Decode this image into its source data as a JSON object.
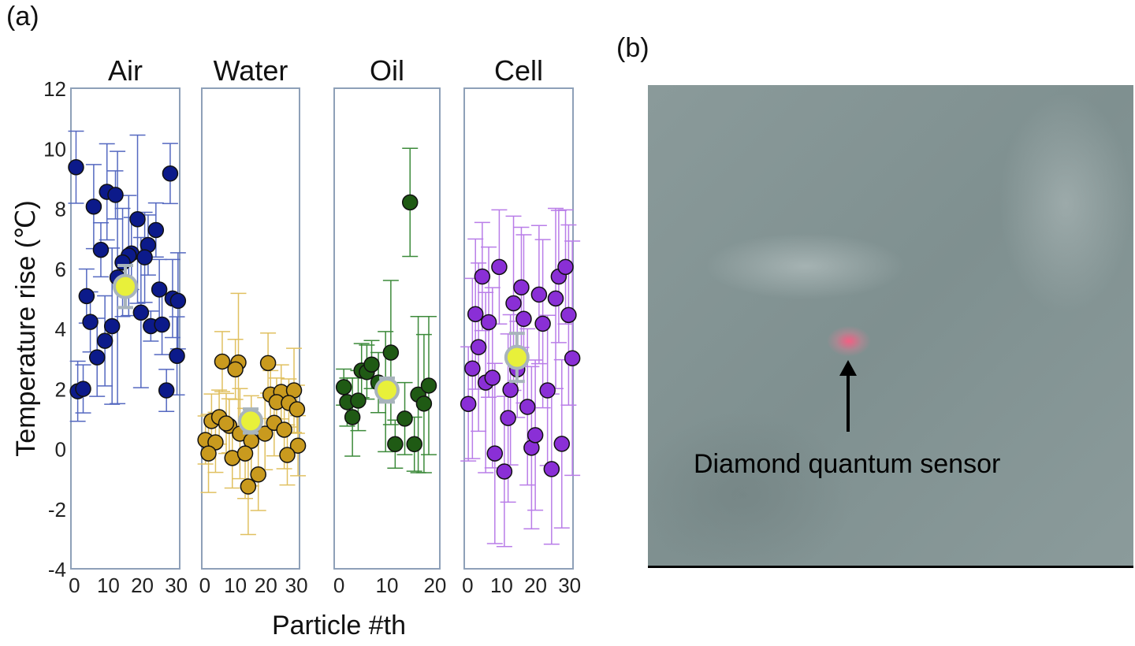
{
  "panel_a_label": "(a)",
  "panel_b_label": "(b)",
  "panel_b": {
    "annotation": "Diamond quantum sensor",
    "arrow_icon": "arrow-up-icon",
    "spot_color": "#ff6f95"
  },
  "chart_data": {
    "type": "scatter",
    "ylabel": "Temperature rise (℃)",
    "xlabel": "Particle #th",
    "ylim": [
      -4,
      12
    ],
    "yticks": [
      -4,
      -2,
      0,
      2,
      4,
      6,
      8,
      10,
      12
    ],
    "grid": false,
    "mean_marker_color": "#e8f03a",
    "panels": [
      {
        "title": "Air",
        "color": "#0c1a8a",
        "bar_color": "#5468c0",
        "xlim": [
          -1,
          31
        ],
        "xticks": [
          0,
          10,
          20,
          30
        ],
        "mean": {
          "x": 15,
          "y": 5.4,
          "err": 0.7
        },
        "points": [
          [
            0.5,
            9.37,
            1.2
          ],
          [
            28.2,
            9.16,
            1.0
          ],
          [
            9.6,
            8.55,
            1.6
          ],
          [
            12.1,
            8.45,
            0.8
          ],
          [
            5.7,
            8.06,
            1.4
          ],
          [
            18.6,
            7.64,
            2.8
          ],
          [
            24,
            7.28,
            0.9
          ],
          [
            7.8,
            6.62,
            0.9
          ],
          [
            21.7,
            6.78,
            1.0
          ],
          [
            16.8,
            6.5,
            1.2
          ],
          [
            16,
            6.43,
            2.0
          ],
          [
            20.7,
            6.37,
            1.5
          ],
          [
            14.2,
            6.2,
            1.8
          ],
          [
            12.7,
            5.7,
            4.2
          ],
          [
            3.6,
            5.08,
            0.9
          ],
          [
            25,
            5.3,
            1.0
          ],
          [
            28.9,
            5.0,
            1.3
          ],
          [
            30.5,
            4.92,
            1.6
          ],
          [
            19.6,
            4.53,
            2.5
          ],
          [
            4.7,
            4.22,
            1.0
          ],
          [
            11.1,
            4.08,
            2.6
          ],
          [
            22.5,
            4.08,
            0.5
          ],
          [
            25.8,
            4.13,
            1.0
          ],
          [
            9,
            3.59,
            1.5
          ],
          [
            6.7,
            3.04,
            1.3
          ],
          [
            30.2,
            3.09,
            1.3
          ],
          [
            1,
            1.91,
            1.0
          ],
          [
            2.6,
            1.99,
            0.8
          ],
          [
            27.1,
            1.94,
            0.7
          ]
        ]
      },
      {
        "title": "Water",
        "color": "#c99a1e",
        "bar_color": "#e0c060",
        "xlim": [
          -1,
          31
        ],
        "xticks": [
          0,
          10,
          20,
          30
        ],
        "mean": {
          "x": 15,
          "y": 0.92,
          "err": 0.4
        },
        "points": [
          [
            5.7,
            2.9,
            1.0
          ],
          [
            11,
            2.87,
            2.3
          ],
          [
            10,
            2.64,
            1.0
          ],
          [
            20.7,
            2.85,
            1.0
          ],
          [
            21.5,
            1.8,
            0.8
          ],
          [
            25,
            1.89,
            0.9
          ],
          [
            29.2,
            1.94,
            1.4
          ],
          [
            23.5,
            1.55,
            0.8
          ],
          [
            27.5,
            1.52,
            0.8
          ],
          [
            30.2,
            1.31,
            0.8
          ],
          [
            2.2,
            0.92,
            0.9
          ],
          [
            4.7,
            1.05,
            0.9
          ],
          [
            8,
            0.76,
            0.9
          ],
          [
            7,
            0.84,
            1.0
          ],
          [
            11.5,
            0.5,
            1.5
          ],
          [
            15.2,
            0.26,
            1.5
          ],
          [
            19.7,
            0.5,
            1.2
          ],
          [
            22.7,
            0.86,
            1.1
          ],
          [
            26,
            0.63,
            1.3
          ],
          [
            0.2,
            0.29,
            0.8
          ],
          [
            3.5,
            0.21,
            1.0
          ],
          [
            30.5,
            0.1,
            1.0
          ],
          [
            1.2,
            -0.16,
            1.3
          ],
          [
            9,
            -0.31,
            1.0
          ],
          [
            13.2,
            -0.16,
            1.5
          ],
          [
            27,
            -0.21,
            1.0
          ],
          [
            17.5,
            -0.86,
            1.2
          ],
          [
            14.2,
            -1.26,
            1.6
          ]
        ]
      },
      {
        "title": "Oil",
        "color": "#1f5a14",
        "bar_color": "#3c8a3a",
        "xlim": [
          -1,
          21
        ],
        "xticks": [
          0,
          10,
          20
        ],
        "mean": {
          "x": 10,
          "y": 1.95,
          "err": 0.4
        },
        "points": [
          [
            1,
            2.05,
            0.6
          ],
          [
            1.7,
            1.55,
            0.8
          ],
          [
            2.8,
            1.05,
            1.3
          ],
          [
            4,
            1.6,
            1.0
          ],
          [
            4.7,
            2.6,
            0.9
          ],
          [
            5.8,
            2.55,
            0.9
          ],
          [
            6.8,
            2.8,
            0.8
          ],
          [
            8.2,
            2.2,
            1.0
          ],
          [
            10.8,
            3.2,
            2.4
          ],
          [
            9.7,
            1.9,
            2.0
          ],
          [
            11.7,
            0.15,
            0.8
          ],
          [
            13.7,
            1.0,
            1.2
          ],
          [
            14.8,
            8.2,
            1.8
          ],
          [
            15.7,
            0.15,
            0.9
          ],
          [
            16.5,
            1.8,
            2.6
          ],
          [
            17.7,
            1.5,
            2.3
          ],
          [
            18.7,
            2.1,
            2.3
          ]
        ]
      },
      {
        "title": "Cell",
        "color": "#8a2fd6",
        "bar_color": "#b97de8",
        "xlim": [
          -1,
          31
        ],
        "xticks": [
          0,
          10,
          20,
          30
        ],
        "mean": {
          "x": 14.5,
          "y": 3.04,
          "err": 0.8
        },
        "points": [
          [
            0.2,
            1.49,
            1.9
          ],
          [
            1.4,
            2.67,
            3.0
          ],
          [
            2.3,
            4.48,
            2.5
          ],
          [
            3.2,
            3.38,
            2.8
          ],
          [
            4.3,
            5.73,
            1.8
          ],
          [
            5.3,
            2.2,
            3.0
          ],
          [
            6.2,
            4.21,
            2.5
          ],
          [
            7.3,
            2.36,
            3.0
          ],
          [
            8,
            -0.16,
            3.0
          ],
          [
            9.3,
            6.05,
            1.9
          ],
          [
            10.8,
            -0.76,
            2.5
          ],
          [
            11.9,
            1.02,
            2.8
          ],
          [
            12.6,
            1.96,
            2.5
          ],
          [
            13.5,
            4.84,
            2.9
          ],
          [
            14.6,
            2.64,
            1.6
          ],
          [
            15.8,
            5.37,
            2.0
          ],
          [
            16.5,
            4.32,
            2.8
          ],
          [
            17.6,
            1.39,
            2.6
          ],
          [
            18.8,
            0.03,
            2.7
          ],
          [
            19.9,
            0.45,
            2.5
          ],
          [
            21,
            5.13,
            2.3
          ],
          [
            22.1,
            4.16,
            2.8
          ],
          [
            23.5,
            1.94,
            2.5
          ],
          [
            24.7,
            -0.68,
            2.5
          ],
          [
            25.9,
            5.0,
            3.0
          ],
          [
            26.8,
            5.73,
            2.2
          ],
          [
            27.7,
            0.16,
            2.8
          ],
          [
            28.8,
            6.05,
            1.9
          ],
          [
            29.7,
            4.45,
            3.0
          ],
          [
            30.8,
            3.01,
            3.9
          ]
        ]
      }
    ]
  }
}
